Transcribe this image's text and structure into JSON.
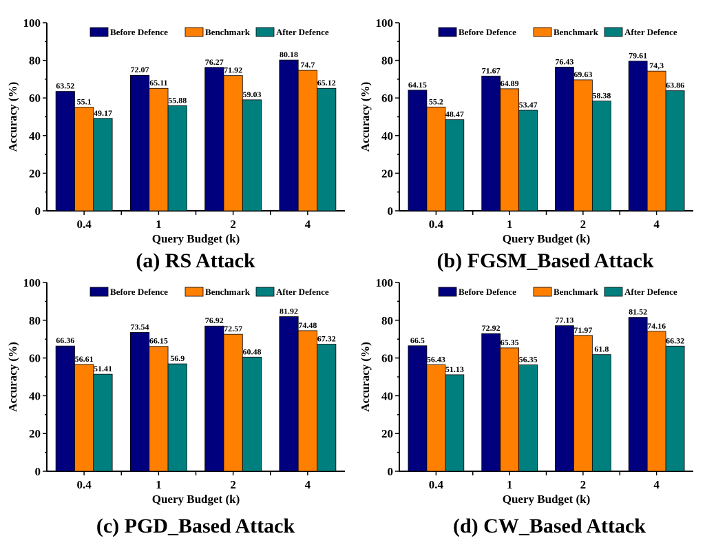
{
  "chart_data": [
    {
      "type": "bar",
      "caption": "(a) RS Attack",
      "xlabel": "Query Budget (k)",
      "ylabel": "Accuracy (%)",
      "ylim": [
        0,
        100
      ],
      "yticks": [
        0,
        20,
        40,
        60,
        80,
        100
      ],
      "categories": [
        "0.4",
        "1",
        "2",
        "4"
      ],
      "legend_position": "top-right",
      "series": [
        {
          "name": "Before Defence",
          "color": "#00007f",
          "values": [
            63.52,
            72.07,
            76.27,
            80.18
          ],
          "labels": [
            "63.52",
            "72.07",
            "76.27",
            "80.18"
          ]
        },
        {
          "name": "Benchmark",
          "color": "#ff7f00",
          "values": [
            55.1,
            65.11,
            71.92,
            74.7
          ],
          "labels": [
            "55.1",
            "65.11",
            "71.92",
            "74.7"
          ]
        },
        {
          "name": "After Defence",
          "color": "#007f7f",
          "values": [
            49.17,
            55.88,
            59.03,
            65.12
          ],
          "labels": [
            "49.17",
            "55.88",
            "59.03",
            "65.12"
          ]
        }
      ]
    },
    {
      "type": "bar",
      "caption": "(b) FGSM_Based Attack",
      "xlabel": "Query Budget (k)",
      "ylabel": "Accuracy (%)",
      "ylim": [
        0,
        100
      ],
      "yticks": [
        0,
        20,
        40,
        60,
        80,
        100
      ],
      "categories": [
        "0.4",
        "1",
        "2",
        "4"
      ],
      "legend_position": "top-right",
      "series": [
        {
          "name": "Before Defence",
          "color": "#00007f",
          "values": [
            64.15,
            71.67,
            76.43,
            79.61
          ],
          "labels": [
            "64.15",
            "71.67",
            "76.43",
            "79.61"
          ]
        },
        {
          "name": "Benchmark",
          "color": "#ff7f00",
          "values": [
            55.2,
            64.89,
            69.63,
            74.3
          ],
          "labels": [
            "55.2",
            "64.89",
            "69.63",
            "74,3"
          ]
        },
        {
          "name": "After Defence",
          "color": "#007f7f",
          "values": [
            48.47,
            53.47,
            58.38,
            63.86
          ],
          "labels": [
            "48.47",
            "53.47",
            "58.38",
            "63.86"
          ]
        }
      ]
    },
    {
      "type": "bar",
      "caption": "(c) PGD_Based Attack",
      "xlabel": "Query Budget (k)",
      "ylabel": "Accuracy (%)",
      "ylim": [
        0,
        100
      ],
      "yticks": [
        0,
        20,
        40,
        60,
        80,
        100
      ],
      "categories": [
        "0.4",
        "1",
        "2",
        "4"
      ],
      "legend_position": "top-right",
      "series": [
        {
          "name": "Before Defence",
          "color": "#00007f",
          "values": [
            66.36,
            73.54,
            76.92,
            81.92
          ],
          "labels": [
            "66.36",
            "73.54",
            "76.92",
            "81.92"
          ]
        },
        {
          "name": "Benchmark",
          "color": "#ff7f00",
          "values": [
            56.61,
            66.15,
            72.57,
            74.48
          ],
          "labels": [
            "56.61",
            "66.15",
            "72.57",
            "74.48"
          ]
        },
        {
          "name": "After Defence",
          "color": "#007f7f",
          "values": [
            51.41,
            56.9,
            60.48,
            67.32
          ],
          "labels": [
            "51.41",
            "56.9",
            "60.48",
            "67.32"
          ]
        }
      ]
    },
    {
      "type": "bar",
      "caption": "(d) CW_Based Attack",
      "xlabel": "Query Budget (k)",
      "ylabel": "Accuracy (%)",
      "ylim": [
        0,
        100
      ],
      "yticks": [
        0,
        20,
        40,
        60,
        80,
        100
      ],
      "categories": [
        "0.4",
        "1",
        "2",
        "4"
      ],
      "legend_position": "top-right",
      "series": [
        {
          "name": "Before Defence",
          "color": "#00007f",
          "values": [
            66.5,
            72.92,
            77.13,
            81.52
          ],
          "labels": [
            "66.5",
            "72.92",
            "77.13",
            "81.52"
          ]
        },
        {
          "name": "Benchmark",
          "color": "#ff7f00",
          "values": [
            56.43,
            65.35,
            71.97,
            74.16
          ],
          "labels": [
            "56.43",
            "65.35",
            "71.97",
            "74.16"
          ]
        },
        {
          "name": "After Defence",
          "color": "#007f7f",
          "values": [
            51.13,
            56.35,
            61.8,
            66.32
          ],
          "labels": [
            "51.13",
            "56.35",
            "61.8",
            "66.32"
          ]
        }
      ]
    }
  ]
}
